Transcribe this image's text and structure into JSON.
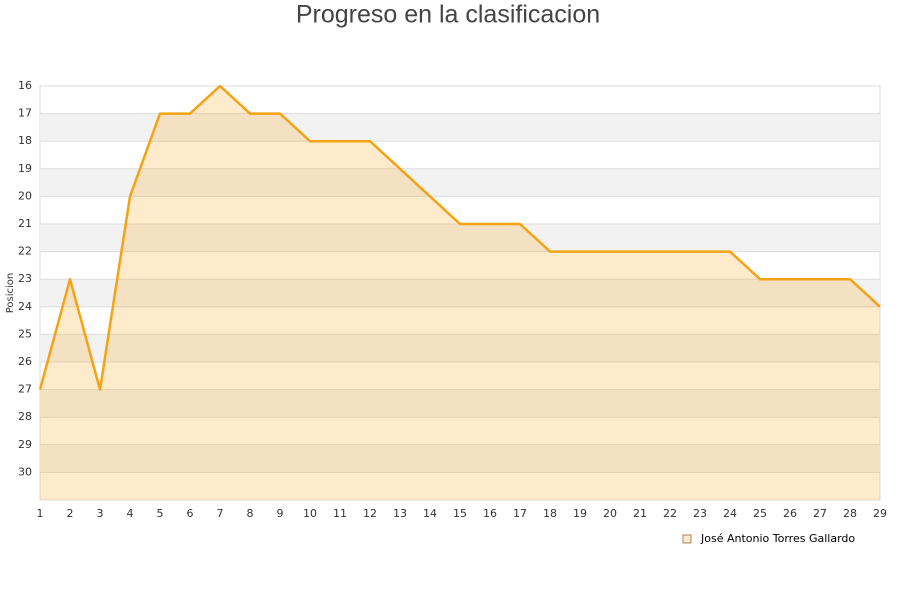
{
  "chart_data": {
    "type": "area",
    "title": "Progreso en la clasificacion",
    "y_label": "Posicion",
    "x": [
      1,
      2,
      3,
      4,
      5,
      6,
      7,
      8,
      9,
      10,
      11,
      12,
      13,
      14,
      15,
      16,
      17,
      18,
      19,
      20,
      21,
      22,
      23,
      24,
      25,
      26,
      27,
      28,
      29
    ],
    "series": [
      {
        "name": "José Antonio Torres Gallardo",
        "color": "#f5a314",
        "values": [
          27,
          23,
          27,
          20,
          17,
          17,
          16,
          17,
          17,
          18,
          18,
          18,
          19,
          20,
          21,
          21,
          21,
          22,
          22,
          22,
          22,
          22,
          22,
          22,
          23,
          23,
          23,
          23,
          24
        ]
      }
    ],
    "xlim": [
      1,
      29
    ],
    "xticks": [
      1,
      2,
      3,
      4,
      5,
      6,
      7,
      8,
      9,
      10,
      11,
      12,
      13,
      14,
      15,
      16,
      17,
      18,
      19,
      20,
      21,
      22,
      23,
      24,
      25,
      26,
      27,
      28,
      29
    ],
    "ylim": [
      16,
      31
    ],
    "yticks": [
      16,
      17,
      18,
      19,
      20,
      21,
      22,
      23,
      24,
      25,
      26,
      27,
      28,
      29,
      30
    ],
    "y_inverted": true,
    "grid": true,
    "legend": "bottom-right"
  }
}
